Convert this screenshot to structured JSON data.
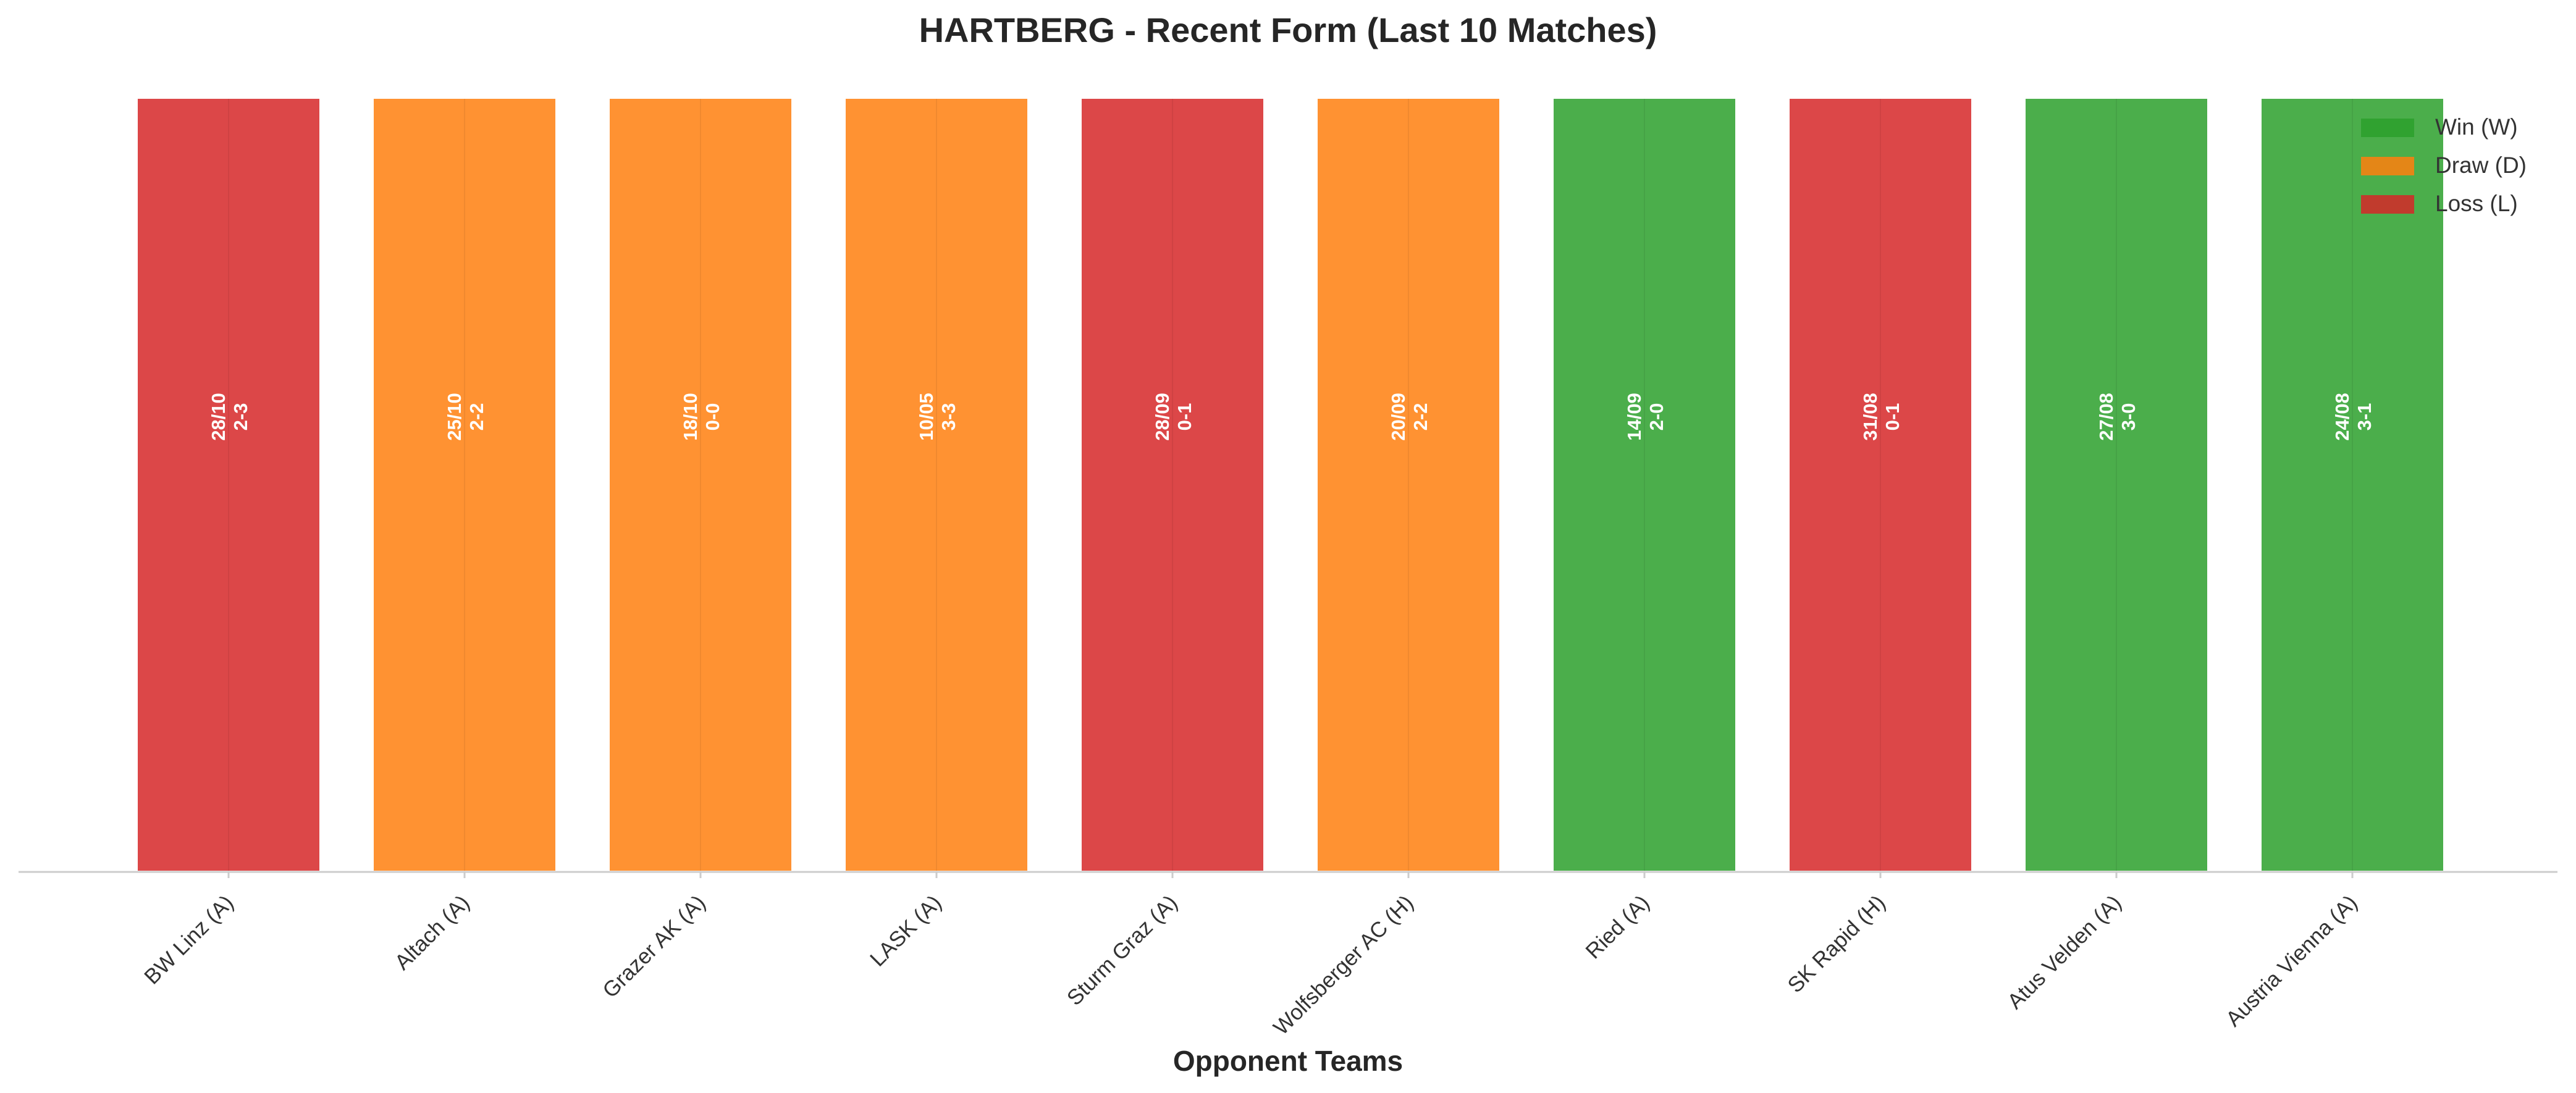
{
  "chart_data": {
    "type": "bar",
    "title": "HARTBERG - Recent Form (Last 10 Matches)",
    "xlabel": "Opponent Teams",
    "ylabel": "",
    "ylim": [
      0,
      1
    ],
    "grid": false,
    "legend_position": "top-right",
    "categories": [
      "BW Linz (A)",
      "Altach (A)",
      "Grazer AK (A)",
      "LASK (A)",
      "Sturm Graz (A)",
      "Wolfsberger AC (H)",
      "Ried (A)",
      "SK Rapid (H)",
      "Atus Velden (A)",
      "Austria Vienna (A)"
    ],
    "values": [
      1,
      1,
      1,
      1,
      1,
      1,
      1,
      1,
      1,
      1
    ],
    "results": [
      "L",
      "D",
      "D",
      "D",
      "L",
      "D",
      "W",
      "L",
      "W",
      "W"
    ],
    "dates": [
      "28/10",
      "25/10",
      "18/10",
      "10/05",
      "28/09",
      "20/09",
      "14/09",
      "31/08",
      "27/08",
      "24/08"
    ],
    "scores": [
      "2-3",
      "2-2",
      "0-0",
      "3-3",
      "0-1",
      "2-2",
      "2-0",
      "0-1",
      "3-0",
      "3-1"
    ],
    "legend": [
      {
        "key": "W",
        "label": "Win (W)",
        "color": "#2ca02c"
      },
      {
        "key": "D",
        "label": "Draw (D)",
        "color": "#ff7f0e"
      },
      {
        "key": "L",
        "label": "Loss (L)",
        "color": "#d62728"
      }
    ]
  }
}
